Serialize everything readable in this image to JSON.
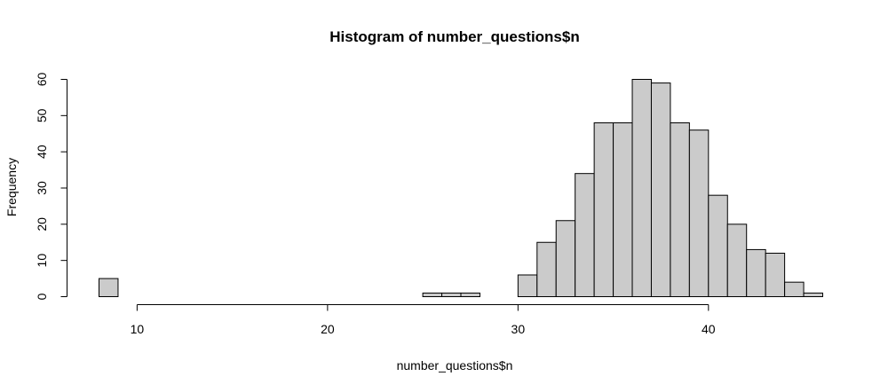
{
  "chart_data": {
    "type": "bar",
    "title": "Histogram of number_questions$n",
    "xlabel": "number_questions$n",
    "ylabel": "Frequency",
    "x_ticks": [
      10,
      20,
      30,
      40
    ],
    "y_ticks": [
      0,
      10,
      20,
      30,
      40,
      50,
      60
    ],
    "xlim": [
      8,
      46
    ],
    "ylim": [
      0,
      60
    ],
    "bin_width": 1,
    "bins": [
      {
        "start": 8,
        "end": 9,
        "count": 5
      },
      {
        "start": 9,
        "end": 10,
        "count": 0
      },
      {
        "start": 10,
        "end": 11,
        "count": 0
      },
      {
        "start": 11,
        "end": 12,
        "count": 0
      },
      {
        "start": 12,
        "end": 13,
        "count": 0
      },
      {
        "start": 13,
        "end": 14,
        "count": 0
      },
      {
        "start": 14,
        "end": 15,
        "count": 0
      },
      {
        "start": 15,
        "end": 16,
        "count": 0
      },
      {
        "start": 16,
        "end": 17,
        "count": 0
      },
      {
        "start": 17,
        "end": 18,
        "count": 0
      },
      {
        "start": 18,
        "end": 19,
        "count": 0
      },
      {
        "start": 19,
        "end": 20,
        "count": 0
      },
      {
        "start": 20,
        "end": 21,
        "count": 0
      },
      {
        "start": 21,
        "end": 22,
        "count": 0
      },
      {
        "start": 22,
        "end": 23,
        "count": 0
      },
      {
        "start": 23,
        "end": 24,
        "count": 0
      },
      {
        "start": 24,
        "end": 25,
        "count": 0
      },
      {
        "start": 25,
        "end": 26,
        "count": 1
      },
      {
        "start": 26,
        "end": 27,
        "count": 1
      },
      {
        "start": 27,
        "end": 28,
        "count": 1
      },
      {
        "start": 28,
        "end": 29,
        "count": 0
      },
      {
        "start": 29,
        "end": 30,
        "count": 0
      },
      {
        "start": 30,
        "end": 31,
        "count": 6
      },
      {
        "start": 31,
        "end": 32,
        "count": 15
      },
      {
        "start": 32,
        "end": 33,
        "count": 21
      },
      {
        "start": 33,
        "end": 34,
        "count": 34
      },
      {
        "start": 34,
        "end": 35,
        "count": 48
      },
      {
        "start": 35,
        "end": 36,
        "count": 48
      },
      {
        "start": 36,
        "end": 37,
        "count": 60
      },
      {
        "start": 37,
        "end": 38,
        "count": 59
      },
      {
        "start": 38,
        "end": 39,
        "count": 48
      },
      {
        "start": 39,
        "end": 40,
        "count": 46
      },
      {
        "start": 40,
        "end": 41,
        "count": 28
      },
      {
        "start": 41,
        "end": 42,
        "count": 20
      },
      {
        "start": 42,
        "end": 43,
        "count": 13
      },
      {
        "start": 43,
        "end": 44,
        "count": 12
      },
      {
        "start": 44,
        "end": 45,
        "count": 4
      },
      {
        "start": 45,
        "end": 46,
        "count": 1
      }
    ],
    "bar_fill": "#cbcbcb",
    "bar_stroke": "#000000",
    "grid": false,
    "legend": "none"
  }
}
